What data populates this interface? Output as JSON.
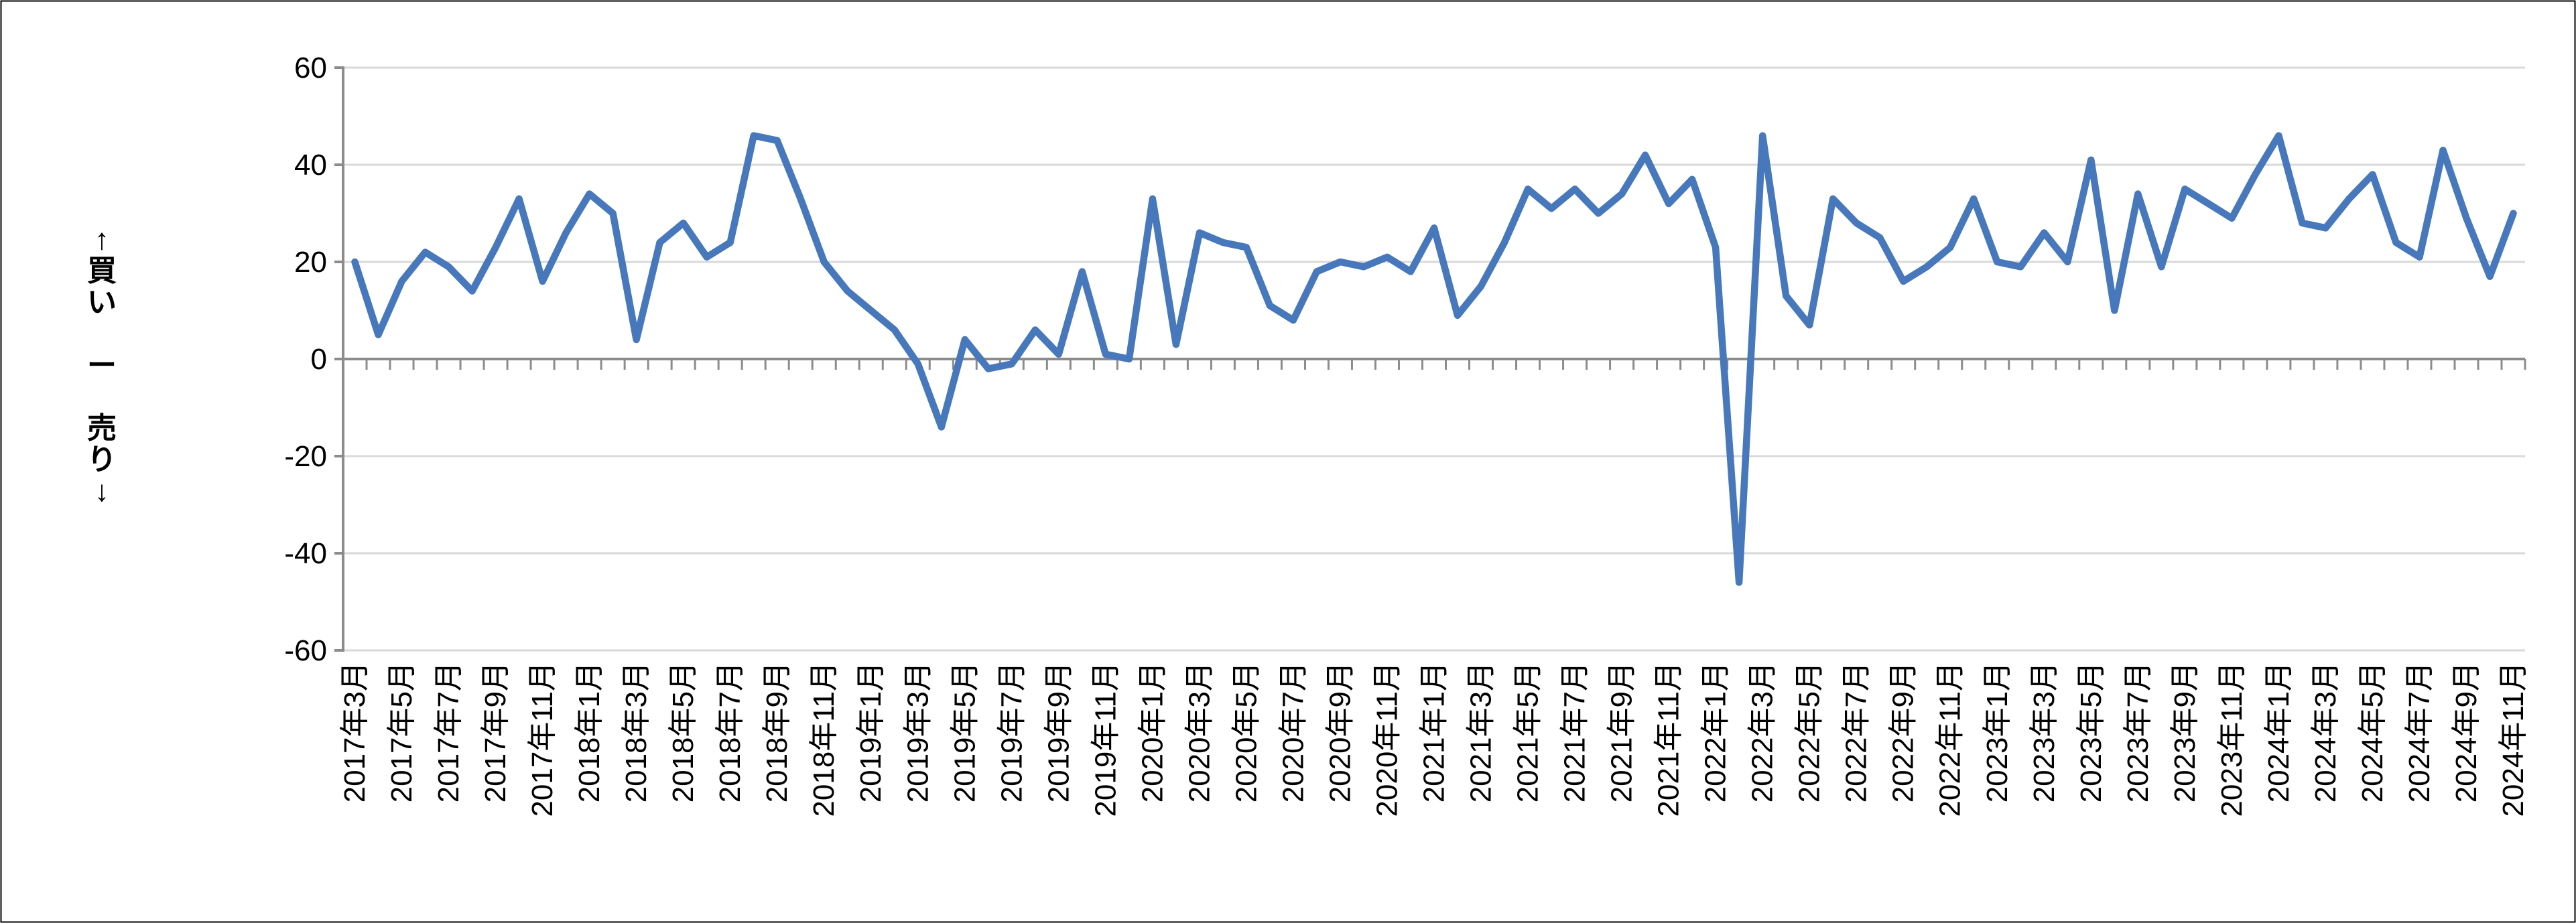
{
  "page": {
    "background": "#FFFFFF",
    "border_color": "#000000"
  },
  "chart": {
    "line_color": "#4778BC",
    "gridline_color": "#D9D9D9",
    "axis_color": "#8C8C8C",
    "text_color": "#000000",
    "y_axis_title": "↑買い ー 売り↓"
  },
  "chart_data": {
    "type": "line",
    "title": "",
    "xlabel": "",
    "ylabel": "↑買い ー 売り↓",
    "ylim": [
      -60,
      60
    ],
    "y_ticks": [
      60,
      40,
      20,
      0,
      -20,
      -40,
      -60
    ],
    "x_label_interval": 2,
    "grid": "horizontal",
    "legend_position": "none",
    "x": [
      "2017年3月",
      "2017年4月",
      "2017年5月",
      "2017年6月",
      "2017年7月",
      "2017年8月",
      "2017年9月",
      "2017年10月",
      "2017年11月",
      "2017年12月",
      "2018年1月",
      "2018年2月",
      "2018年3月",
      "2018年4月",
      "2018年5月",
      "2018年6月",
      "2018年7月",
      "2018年8月",
      "2018年9月",
      "2018年10月",
      "2018年11月",
      "2018年12月",
      "2019年1月",
      "2019年2月",
      "2019年3月",
      "2019年4月",
      "2019年5月",
      "2019年6月",
      "2019年7月",
      "2019年8月",
      "2019年9月",
      "2019年10月",
      "2019年11月",
      "2019年12月",
      "2020年1月",
      "2020年2月",
      "2020年3月",
      "2020年4月",
      "2020年5月",
      "2020年6月",
      "2020年7月",
      "2020年8月",
      "2020年9月",
      "2020年10月",
      "2020年11月",
      "2020年12月",
      "2021年1月",
      "2021年2月",
      "2021年3月",
      "2021年4月",
      "2021年5月",
      "2021年6月",
      "2021年7月",
      "2021年8月",
      "2021年9月",
      "2021年10月",
      "2021年11月",
      "2021年12月",
      "2022年1月",
      "2022年2月",
      "2022年3月",
      "2022年4月",
      "2022年5月",
      "2022年6月",
      "2022年7月",
      "2022年8月",
      "2022年9月",
      "2022年10月",
      "2022年11月",
      "2022年12月",
      "2023年1月",
      "2023年2月",
      "2023年3月",
      "2023年4月",
      "2023年5月",
      "2023年6月",
      "2023年7月",
      "2023年8月",
      "2023年9月",
      "2023年10月",
      "2023年11月",
      "2023年12月",
      "2024年1月",
      "2024年2月",
      "2024年3月",
      "2024年4月",
      "2024年5月",
      "2024年6月",
      "2024年7月",
      "2024年8月",
      "2024年9月",
      "2024年10月",
      "2024年11月"
    ],
    "values": [
      20,
      5,
      16,
      22,
      19,
      14,
      23,
      33,
      16,
      26,
      34,
      30,
      4,
      24,
      28,
      21,
      24,
      46,
      45,
      33,
      20,
      14,
      10,
      6,
      -1,
      -14,
      4,
      -2,
      -1,
      6,
      1,
      18,
      1,
      0,
      33,
      3,
      26,
      24,
      23,
      11,
      8,
      18,
      20,
      19,
      21,
      18,
      27,
      9,
      15,
      24,
      35,
      31,
      35,
      30,
      34,
      42,
      32,
      37,
      23,
      -46,
      46,
      13,
      7,
      33,
      28,
      25,
      16,
      19,
      23,
      33,
      20,
      19,
      26,
      20,
      41,
      10,
      34,
      19,
      35,
      32,
      29,
      38,
      46,
      28,
      27,
      33,
      38,
      24,
      21,
      43,
      29,
      17,
      30
    ]
  }
}
